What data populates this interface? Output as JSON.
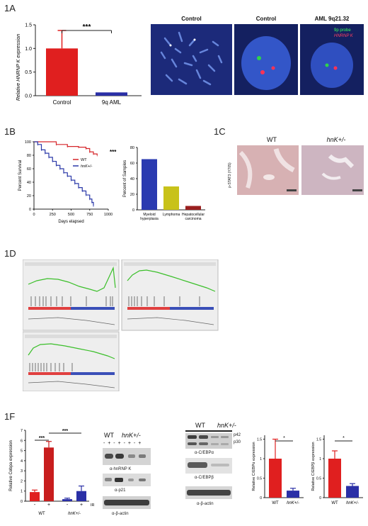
{
  "panels": {
    "p1a": "1A",
    "p1b": "1B",
    "p1c": "1C",
    "p1d": "1D",
    "p1f": "1F"
  },
  "fig1a": {
    "chart_data": {
      "type": "bar",
      "categories": [
        "Control",
        "9q AML"
      ],
      "values": [
        1.0,
        0.07
      ],
      "errors": [
        0.38,
        0.0
      ],
      "ylabel": "Relative HNRNP K expression",
      "ylim": [
        0,
        1.5
      ],
      "yticks": [
        "0.0",
        "0.5",
        "1.0",
        "1.5"
      ],
      "significance": "***",
      "colors": [
        "#e01f1f",
        "#2a2fa6"
      ]
    },
    "fish_labels": [
      "Control",
      "Control",
      "AML 9q21.32"
    ],
    "probe_legend": [
      "9p probe",
      "HNRNP K"
    ]
  },
  "fig1b": {
    "survival": {
      "type": "line",
      "ylabel": "Percent Survival",
      "xlabel": "Days elapsed",
      "xticks": [
        "0",
        "250",
        "500",
        "750",
        "1000"
      ],
      "yticks": [
        "0",
        "20",
        "40",
        "60",
        "80",
        "100"
      ],
      "xlim": [
        0,
        1000
      ],
      "ylim": [
        0,
        100
      ],
      "legend": [
        "WT",
        "hnK+/-"
      ],
      "significance": "***",
      "series": [
        {
          "name": "WT",
          "x": [
            0,
            300,
            450,
            600,
            700,
            750,
            800,
            850
          ],
          "y": [
            100,
            96,
            93,
            92,
            90,
            85,
            82,
            80
          ]
        },
        {
          "name": "hnK+/-",
          "x": [
            0,
            50,
            100,
            150,
            200,
            250,
            300,
            350,
            400,
            450,
            500,
            550,
            600,
            650,
            700,
            750,
            780,
            800
          ],
          "y": [
            100,
            96,
            88,
            83,
            77,
            71,
            65,
            60,
            54,
            49,
            43,
            38,
            32,
            27,
            21,
            15,
            10,
            5
          ]
        }
      ]
    },
    "tumors": {
      "type": "bar",
      "ylabel": "Percent of Samples",
      "categories": [
        "Myeloid hyperplasia",
        "Lymphoma",
        "Hepatocellular carcinoma"
      ],
      "values": [
        65,
        30,
        5
      ],
      "ylim": [
        0,
        80
      ],
      "yticks": [
        "0",
        "20",
        "40",
        "60",
        "80"
      ],
      "colors": [
        "#2a3ab0",
        "#c8c21a",
        "#9a1f1f"
      ]
    }
  },
  "fig1c": {
    "titles": [
      "WT",
      "hnK+/-"
    ],
    "ylabel": "p-STAT3 (Y705)"
  },
  "fig1f": {
    "qpcr": {
      "type": "bar",
      "ylabel": "Relative Cebpa expression",
      "yticks": [
        "0",
        "1",
        "2",
        "3",
        "4",
        "5",
        "6",
        "7"
      ],
      "ylim": [
        0,
        7
      ],
      "categories": [
        "WT -",
        "WT +",
        "hnK+/- -",
        "hnK+/- +"
      ],
      "values": [
        0.9,
        5.3,
        0.2,
        1.0
      ],
      "errors": [
        0.2,
        0.6,
        0.1,
        0.5
      ],
      "colors": [
        "#e01f1f",
        "#c81e1e",
        "#2a2fa6",
        "#2a2fa6"
      ],
      "group_labels": [
        "WT",
        "hnK+/-"
      ],
      "ir_label": "IR",
      "minus": "-",
      "plus": "+",
      "significance": [
        "***",
        "***"
      ]
    },
    "blot1": {
      "group_labels": [
        "WT",
        "hnK+/-"
      ],
      "lanes": "- + - + - + - +",
      "labels": [
        "α-hnRNP K",
        "α-p21",
        "α-β-actin"
      ]
    },
    "blot2": {
      "group_labels": [
        "WT",
        "hnK+/-"
      ],
      "bands": [
        "p42",
        "p30"
      ],
      "labels": [
        "α-C/EBPα",
        "α-C/EBPβ",
        "α-β-actin"
      ]
    },
    "cebpa": {
      "type": "bar",
      "ylabel": "Relative C/EBPα expression",
      "categories": [
        "WT",
        "hnK+/-"
      ],
      "values": [
        1.0,
        0.18
      ],
      "errors": [
        0.5,
        0.06
      ],
      "yticks": [
        "0",
        "0.5",
        "1",
        "1.5"
      ],
      "significance": "*"
    },
    "cebpb": {
      "type": "bar",
      "ylabel": "Relative C/EBPβ expression",
      "categories": [
        "WT",
        "hnK+/-"
      ],
      "values": [
        1.0,
        0.3
      ],
      "errors": [
        0.2,
        0.06
      ],
      "yticks": [
        "0",
        "0.5",
        "1",
        "1.5"
      ],
      "significance": "*"
    }
  }
}
